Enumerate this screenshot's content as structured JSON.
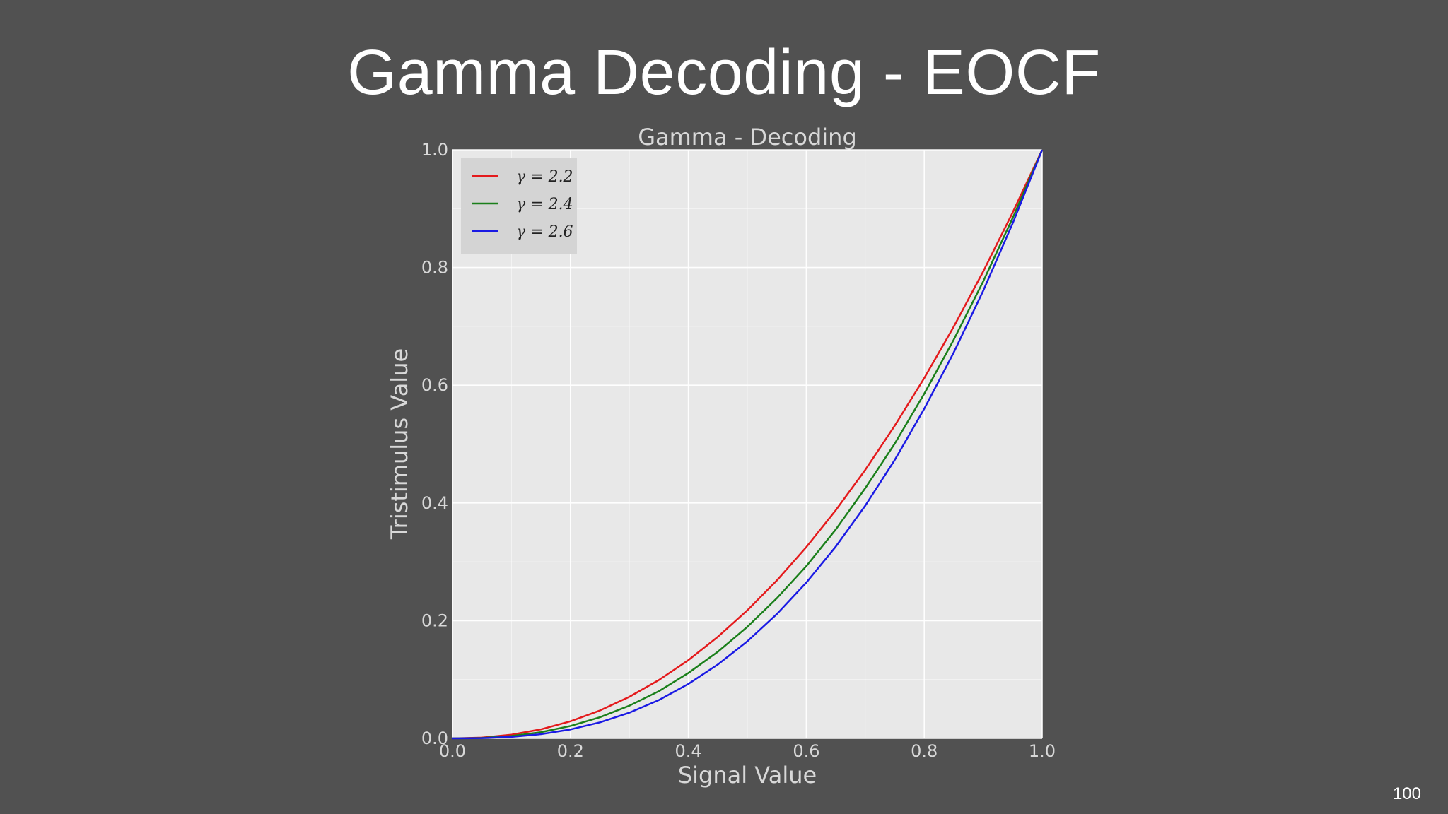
{
  "slide": {
    "title": "Gamma Decoding - EOCF",
    "page_number": "100",
    "background": "#515151"
  },
  "chart_data": {
    "type": "line",
    "title": "Gamma - Decoding",
    "xlabel": "Signal Value",
    "ylabel": "Tristimulus Value",
    "xlim": [
      0.0,
      1.0
    ],
    "ylim": [
      0.0,
      1.0
    ],
    "xticks": [
      "0.0",
      "0.2",
      "0.4",
      "0.6",
      "0.8",
      "1.0"
    ],
    "yticks": [
      "0.0",
      "0.2",
      "0.4",
      "0.6",
      "0.8",
      "1.0"
    ],
    "grid": true,
    "legend_position": "top-left",
    "plot_background": "#e8e8e8",
    "x": [
      0.0,
      0.05,
      0.1,
      0.15,
      0.2,
      0.25,
      0.3,
      0.35,
      0.4,
      0.45,
      0.5,
      0.55,
      0.6,
      0.65,
      0.7,
      0.75,
      0.8,
      0.85,
      0.9,
      0.95,
      1.0
    ],
    "series": [
      {
        "name": "γ = 2.2",
        "color": "#e41a1c",
        "values": [
          0.0,
          0.0014,
          0.0063,
          0.0154,
          0.029,
          0.0474,
          0.0707,
          0.0992,
          0.1329,
          0.1726,
          0.2176,
          0.2683,
          0.325,
          0.3877,
          0.4562,
          0.5313,
          0.6121,
          0.6994,
          0.7932,
          0.8935,
          1.0
        ]
      },
      {
        "name": "γ = 2.4",
        "color": "#1a7f1a",
        "values": [
          0.0,
          0.0008,
          0.004,
          0.0105,
          0.0211,
          0.0359,
          0.0556,
          0.0802,
          0.1111,
          0.1472,
          0.1895,
          0.2381,
          0.2927,
          0.355,
          0.4251,
          0.5009,
          0.5855,
          0.6773,
          0.7764,
          0.8842,
          1.0
        ]
      },
      {
        "name": "γ = 2.6",
        "color": "#1a1ae4",
        "values": [
          0.0,
          0.0004,
          0.0025,
          0.0072,
          0.0152,
          0.0272,
          0.0437,
          0.0651,
          0.0925,
          0.1256,
          0.1649,
          0.2112,
          0.2647,
          0.3259,
          0.3954,
          0.4731,
          0.5601,
          0.6555,
          0.7604,
          0.8751,
          1.0
        ]
      }
    ]
  }
}
